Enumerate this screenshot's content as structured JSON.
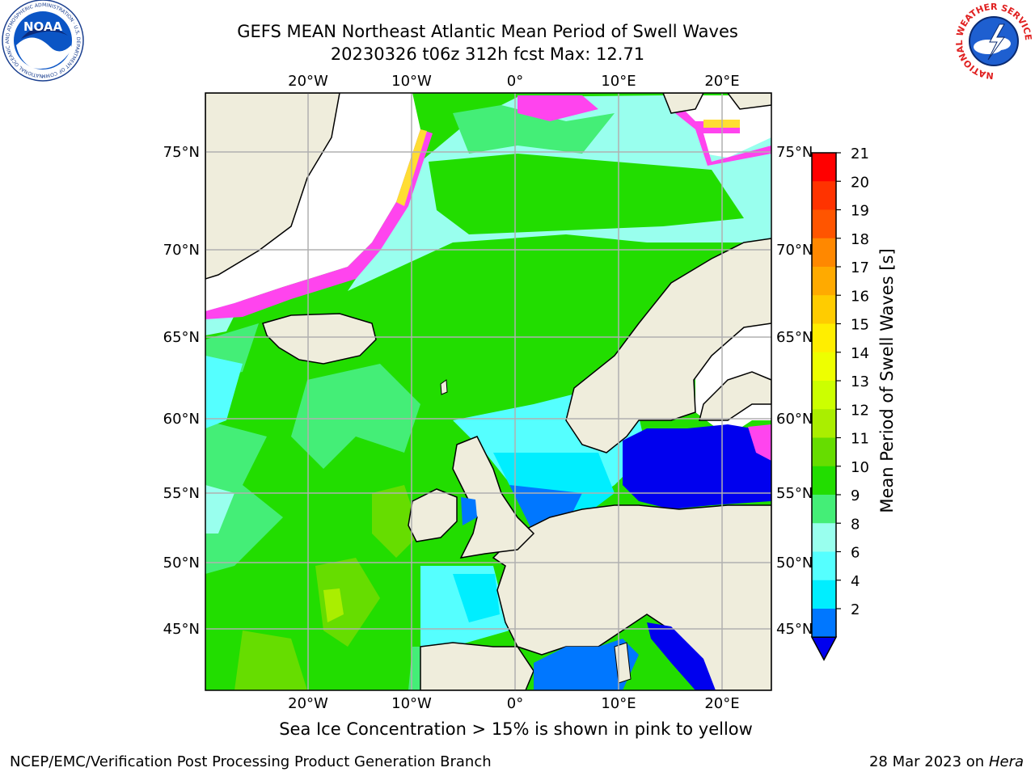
{
  "header": {
    "title": "GEFS MEAN Northeast Atlantic Mean Period of Swell Waves",
    "subtitle": "20230326 t06z 312h fcst   Max: 12.71"
  },
  "map": {
    "lon_ticks": [
      "20°W",
      "10°W",
      "0°",
      "10°E",
      "20°E"
    ],
    "lat_ticks": [
      "75°N",
      "70°N",
      "65°N",
      "60°N",
      "55°N",
      "50°N",
      "45°N"
    ],
    "colors": {
      "land": "#efeddc",
      "ice_region": "#ffffff",
      "ice_pink": "#ff44ee",
      "ice_yellow": "#ffdd33",
      "grid": "#b0b0b0"
    }
  },
  "colorbar": {
    "label": "Mean Period of Swell Waves [s]",
    "ticks": [
      "21",
      "20",
      "19",
      "18",
      "17",
      "16",
      "15",
      "14",
      "13",
      "12",
      "11",
      "10",
      "9",
      "8",
      "6",
      "4",
      "2"
    ],
    "colors_top_to_bottom": [
      "#ff0000",
      "#ff3300",
      "#ff5500",
      "#ff8800",
      "#ffaa00",
      "#ffcc00",
      "#ffee00",
      "#eeff00",
      "#ccff00",
      "#aaee00",
      "#66dd00",
      "#22dd00",
      "#44ee77",
      "#99ffee",
      "#55ffff",
      "#00eeff",
      "#0077ff"
    ],
    "extend_color": "#0000ee"
  },
  "note": "Sea Ice Concentration > 15% is shown in pink to yellow",
  "footer": {
    "left": "NCEP/EMC/Verification Post Processing Product Generation Branch",
    "date": "28 Mar 2023 on",
    "machine": "Hera"
  },
  "logos": {
    "noaa_text": "NOAA",
    "noaa_ring": "NATIONAL OCEANIC AND ATMOSPHERIC ADMINISTRATION · U.S. DEPARTMENT OF COMMERCE",
    "nws_ring": "NATIONAL WEATHER SERVICE"
  }
}
